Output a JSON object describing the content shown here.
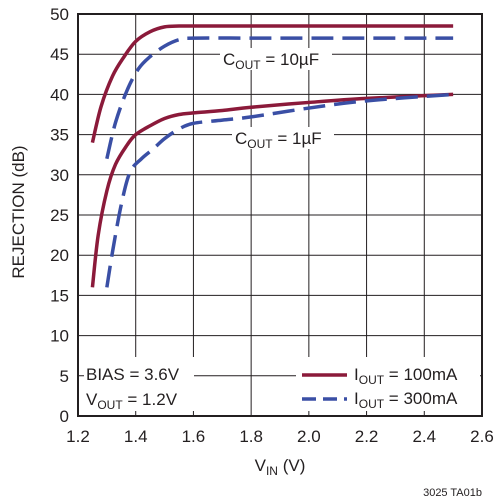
{
  "chart_data": {
    "type": "line",
    "title": "",
    "xlabel": {
      "main": "V",
      "sub": "IN",
      "suffix": " (V)"
    },
    "ylabel": "REJECTION (dB)",
    "xlim": [
      1.2,
      2.6
    ],
    "ylim": [
      0,
      50
    ],
    "xticks": [
      "1.2",
      "1.4",
      "1.6",
      "1.8",
      "2.0",
      "2.2",
      "2.4",
      "2.6"
    ],
    "yticks": [
      "0",
      "5",
      "10",
      "15",
      "20",
      "25",
      "30",
      "35",
      "40",
      "45",
      "50"
    ],
    "grid": true,
    "legend_position": "bottom-right",
    "colors": {
      "solid": "#8b1a3a",
      "dashed": "#3a4fa5",
      "ink": "#231f20"
    },
    "legend": [
      {
        "main": "I",
        "sub": "OUT",
        "suffix": " = 100mA",
        "style": "solid"
      },
      {
        "main": "I",
        "sub": "OUT",
        "suffix": " = 300mA",
        "style": "dashed"
      }
    ],
    "annotations": {
      "cout_10": {
        "main": "C",
        "sub": "OUT",
        "suffix": " = 10µF"
      },
      "cout_1": {
        "main": "C",
        "sub": "OUT",
        "suffix": " = 1µF"
      },
      "bias": "BIAS = 3.6V",
      "vout": {
        "main": "V",
        "sub": "OUT",
        "suffix": " = 1.2V"
      }
    },
    "series": [
      {
        "group": "cout_10",
        "style": "solid",
        "x": [
          1.25,
          1.28,
          1.32,
          1.36,
          1.4,
          1.45,
          1.5,
          1.55,
          1.6,
          1.8,
          2.0,
          2.2,
          2.5
        ],
        "y": [
          34,
          38.5,
          42.3,
          44.7,
          46.6,
          47.8,
          48.4,
          48.5,
          48.5,
          48.5,
          48.5,
          48.5,
          48.5
        ]
      },
      {
        "group": "cout_10",
        "style": "dashed",
        "x": [
          1.3,
          1.33,
          1.37,
          1.41,
          1.45,
          1.5,
          1.55,
          1.6,
          1.8,
          2.0,
          2.2,
          2.5
        ],
        "y": [
          32,
          36.5,
          40.5,
          43.2,
          44.7,
          46.0,
          46.8,
          47.0,
          47.0,
          47.0,
          47.0,
          47.0
        ]
      },
      {
        "group": "cout_1",
        "style": "solid",
        "x": [
          1.25,
          1.27,
          1.3,
          1.33,
          1.37,
          1.4,
          1.45,
          1.5,
          1.55,
          1.6,
          1.7,
          1.8,
          2.0,
          2.2,
          2.5
        ],
        "y": [
          16,
          22.5,
          28.0,
          31.3,
          33.7,
          35.0,
          36.1,
          37.0,
          37.5,
          37.7,
          38.0,
          38.4,
          39.0,
          39.5,
          40.0
        ]
      },
      {
        "group": "cout_1",
        "style": "dashed",
        "x": [
          1.3,
          1.32,
          1.35,
          1.38,
          1.42,
          1.46,
          1.5,
          1.55,
          1.6,
          1.7,
          1.8,
          2.0,
          2.2,
          2.5
        ],
        "y": [
          16,
          20.5,
          26.3,
          30.3,
          32.0,
          33.2,
          34.5,
          35.7,
          36.4,
          36.8,
          37.2,
          38.3,
          39.2,
          40.0
        ]
      }
    ]
  },
  "footnote": "3025 TA01b"
}
